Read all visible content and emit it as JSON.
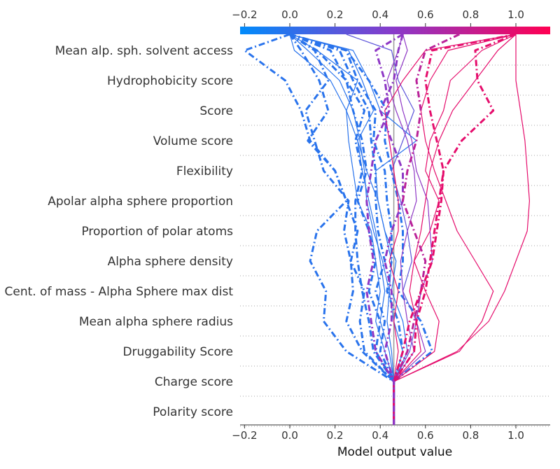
{
  "chart_data": {
    "type": "line",
    "subtype": "shap-decision-plot",
    "xlabel": "Model output value",
    "xlim": [
      -0.22,
      1.15
    ],
    "base_value": 0.46,
    "x_ticks": [
      -0.2,
      0.0,
      0.2,
      0.4,
      0.6,
      0.8,
      1.0
    ],
    "x_tick_labels": [
      "−0.2",
      "0.0",
      "0.2",
      "0.4",
      "0.6",
      "0.8",
      "1.0"
    ],
    "features": [
      "Mean alp. sph. solvent access",
      "Hydrophobicity score",
      "Score",
      "Volume score",
      "Flexibility",
      "Apolar alpha sphere proportion",
      "Proportion of polar atoms",
      "Alpha sphere density",
      "Cent. of mass - Alpha Sphere max dist",
      "Mean alpha sphere radius",
      "Druggability Score",
      "Charge score",
      "Polarity score"
    ],
    "colorbar": {
      "low_color": "#008bfb",
      "high_color": "#ff0052",
      "range": [
        -0.2,
        1.15
      ]
    },
    "grid": "dotted horizontal",
    "series": [
      {
        "style": "dashdot",
        "values": [
          0.0,
          -0.2,
          -0.02,
          0.05,
          0.09,
          0.2,
          0.25,
          0.12,
          0.09,
          0.16,
          0.15,
          0.25,
          0.46
        ]
      },
      {
        "style": "dashdot",
        "values": [
          0.0,
          0.11,
          0.17,
          0.07,
          0.11,
          0.15,
          0.26,
          0.24,
          0.27,
          0.28,
          0.25,
          0.32,
          0.46
        ]
      },
      {
        "style": "dashdot",
        "values": [
          0.0,
          0.05,
          0.13,
          0.17,
          0.08,
          0.2,
          0.25,
          0.3,
          0.27,
          0.33,
          0.31,
          0.33,
          0.46
        ]
      },
      {
        "style": "dashdot",
        "values": [
          0.0,
          0.12,
          0.25,
          0.33,
          0.29,
          0.32,
          0.29,
          0.29,
          0.3,
          0.32,
          0.35,
          0.37,
          0.46
        ]
      },
      {
        "style": "dashdot",
        "values": [
          0.0,
          0.18,
          0.25,
          0.28,
          0.32,
          0.34,
          0.3,
          0.35,
          0.38,
          0.35,
          0.4,
          0.38,
          0.46
        ]
      },
      {
        "style": "dashdot",
        "values": [
          0.0,
          0.22,
          0.28,
          0.35,
          0.36,
          0.38,
          0.38,
          0.39,
          0.42,
          0.38,
          0.42,
          0.4,
          0.46
        ]
      },
      {
        "style": "dashdot",
        "values": [
          0.0,
          0.25,
          0.3,
          0.38,
          0.37,
          0.42,
          0.43,
          0.45,
          0.45,
          0.43,
          0.48,
          0.5,
          0.46
        ]
      },
      {
        "style": "dashdot",
        "values": [
          0.0,
          0.25,
          0.35,
          0.43,
          0.42,
          0.45,
          0.48,
          0.5,
          0.5,
          0.48,
          0.58,
          0.63,
          0.46
        ]
      },
      {
        "style": "solid",
        "values": [
          0.0,
          0.02,
          0.18,
          0.25,
          0.3,
          0.32,
          0.35,
          0.38,
          0.4,
          0.42,
          0.4,
          0.44,
          0.46
        ]
      },
      {
        "style": "solid",
        "values": [
          0.0,
          0.08,
          0.22,
          0.28,
          0.31,
          0.33,
          0.34,
          0.37,
          0.41,
          0.44,
          0.43,
          0.45,
          0.46
        ]
      },
      {
        "style": "solid",
        "values": [
          0.0,
          0.12,
          0.3,
          0.25,
          0.26,
          0.28,
          0.3,
          0.36,
          0.38,
          0.4,
          0.38,
          0.42,
          0.46
        ]
      },
      {
        "style": "solid",
        "values": [
          0.0,
          0.28,
          0.35,
          0.4,
          0.56,
          0.38,
          0.39,
          0.42,
          0.47,
          0.45,
          0.5,
          0.52,
          0.46
        ]
      },
      {
        "style": "solid",
        "values": [
          0.0,
          0.26,
          0.32,
          0.37,
          0.3,
          0.34,
          0.39,
          0.42,
          0.45,
          0.44,
          0.46,
          0.5,
          0.46
        ]
      },
      {
        "style": "solid",
        "values": [
          0.25,
          0.45,
          0.48,
          0.55,
          0.5,
          0.45,
          0.49,
          0.52,
          0.54,
          0.5,
          0.56,
          0.53,
          0.46
        ]
      },
      {
        "style": "solid",
        "values": [
          0.5,
          0.48,
          0.43,
          0.47,
          0.52,
          0.55,
          0.56,
          0.52,
          0.49,
          0.5,
          0.52,
          0.55,
          0.46
        ]
      },
      {
        "style": "solid",
        "values": [
          0.5,
          0.52,
          0.47,
          0.5,
          0.54,
          0.56,
          0.61,
          0.62,
          0.63,
          0.58,
          0.56,
          0.6,
          0.46
        ]
      },
      {
        "style": "solid",
        "values": [
          1.0,
          0.7,
          0.62,
          0.58,
          0.6,
          0.64,
          0.69,
          0.74,
          0.82,
          0.9,
          0.85,
          0.75,
          0.46
        ]
      },
      {
        "style": "solid",
        "values": [
          1.0,
          0.85,
          0.71,
          0.68,
          0.62,
          0.6,
          0.66,
          0.62,
          0.55,
          0.6,
          0.66,
          0.64,
          0.46
        ]
      },
      {
        "style": "solid",
        "values": [
          1.0,
          0.92,
          0.82,
          0.72,
          0.66,
          0.62,
          0.6,
          0.58,
          0.55,
          0.53,
          0.56,
          0.58,
          0.46
        ]
      },
      {
        "style": "solid",
        "values": [
          1.0,
          1.0,
          1.0,
          1.02,
          1.04,
          1.05,
          1.06,
          1.05,
          1.0,
          0.95,
          0.88,
          0.74,
          0.46
        ]
      },
      {
        "style": "solid",
        "values": [
          1.0,
          0.6,
          0.5,
          0.42,
          0.44,
          0.46,
          0.48,
          0.48,
          0.44,
          0.48,
          0.46,
          0.48,
          0.46
        ]
      },
      {
        "style": "dashdot",
        "values": [
          0.5,
          0.48,
          0.46,
          0.4,
          0.45,
          0.5,
          0.5,
          0.45,
          0.42,
          0.45,
          0.45,
          0.42,
          0.46
        ]
      },
      {
        "style": "dashdot",
        "values": [
          0.75,
          0.6,
          0.56,
          0.58,
          0.56,
          0.52,
          0.5,
          0.55,
          0.6,
          0.58,
          0.55,
          0.52,
          0.46
        ]
      },
      {
        "style": "dashdot",
        "values": [
          1.0,
          0.63,
          0.6,
          0.62,
          0.65,
          0.68,
          0.66,
          0.64,
          0.62,
          0.6,
          0.56,
          0.55,
          0.46
        ]
      },
      {
        "style": "dashdot",
        "values": [
          1.0,
          0.82,
          0.83,
          0.9,
          0.76,
          0.68,
          0.67,
          0.65,
          0.63,
          0.58,
          0.53,
          0.5,
          0.46
        ]
      },
      {
        "style": "dashdot",
        "values": [
          0.5,
          0.38,
          0.42,
          0.44,
          0.38,
          0.36,
          0.34,
          0.35,
          0.37,
          0.34,
          0.36,
          0.38,
          0.46
        ]
      }
    ]
  }
}
